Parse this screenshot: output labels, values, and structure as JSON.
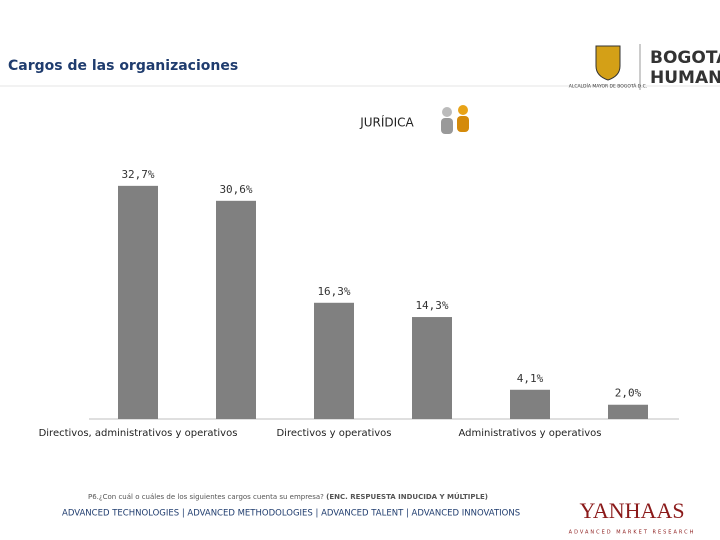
{
  "header": {
    "title": "Cargos de las organizaciones",
    "logo_city_caption": "ALCALDÍA MAYOR DE BOGOTÁ D.C.",
    "logo_brand_top": "BOGOTÁ",
    "logo_brand_bottom": "HUMANA"
  },
  "chart_data": {
    "type": "bar",
    "title": "JURÍDICA",
    "categories": [
      "Directivos, administrativos y operativos",
      null,
      "Directivos y operativos",
      null,
      "Administrativos y operativos",
      null
    ],
    "values": [
      32.7,
      30.6,
      16.3,
      14.3,
      4.1,
      2.0
    ],
    "value_labels": [
      "32,7%",
      "30,6%",
      "16,3%",
      "14,3%",
      "4,1%",
      "2,0%"
    ],
    "color": "#808080"
  },
  "footnote": {
    "question": "P6.¿Con cuál o cuáles de los siguientes cargos cuenta su empresa?",
    "note": "(ENC. RESPUESTA INDUCIDA Y MÚLTIPLE)"
  },
  "footer": {
    "tagline": "ADVANCED TECHNOLOGIES | ADVANCED METHODOLOGIES | ADVANCED TALENT | ADVANCED INNOVATIONS",
    "logo": "YANHAAS",
    "logo_caption": "ADVANCED MARKET RESEARCH"
  }
}
